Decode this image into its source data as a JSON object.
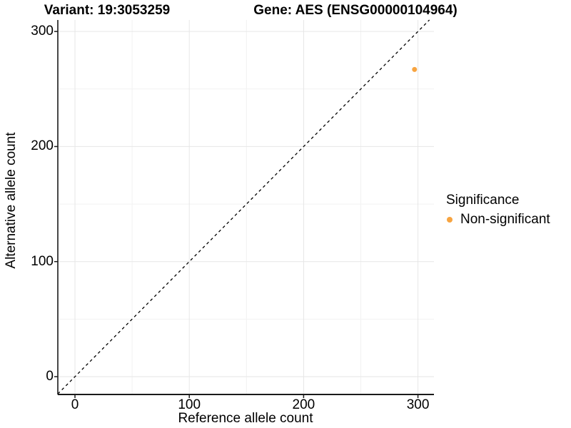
{
  "chart_data": {
    "type": "scatter",
    "title_left": "Variant: 19:3053259",
    "title_right": "Gene: AES (ENSG00000104964)",
    "xlabel": "Reference allele count",
    "ylabel": "Alternative allele count",
    "x_ticks": [
      0,
      100,
      200,
      300
    ],
    "y_ticks": [
      0,
      100,
      200,
      300
    ],
    "xlim": [
      -15,
      314
    ],
    "ylim": [
      -15.5,
      310
    ],
    "grid": {
      "major": true,
      "minor": true,
      "major_color": "#E6E6E6",
      "minor_color": "#F2F2F2"
    },
    "axis_color": "#1A1A1A",
    "points": [
      {
        "ref_count": 297,
        "alt_count": 267,
        "significance": "Non-significant"
      }
    ],
    "reference_line": {
      "kind": "identity",
      "slope": 1,
      "intercept": 0,
      "style": "dashed",
      "color": "#000000"
    },
    "legend": {
      "title": "Significance",
      "position": "right",
      "items": [
        {
          "label": "Non-significant",
          "color": "#F7A440"
        }
      ]
    }
  }
}
